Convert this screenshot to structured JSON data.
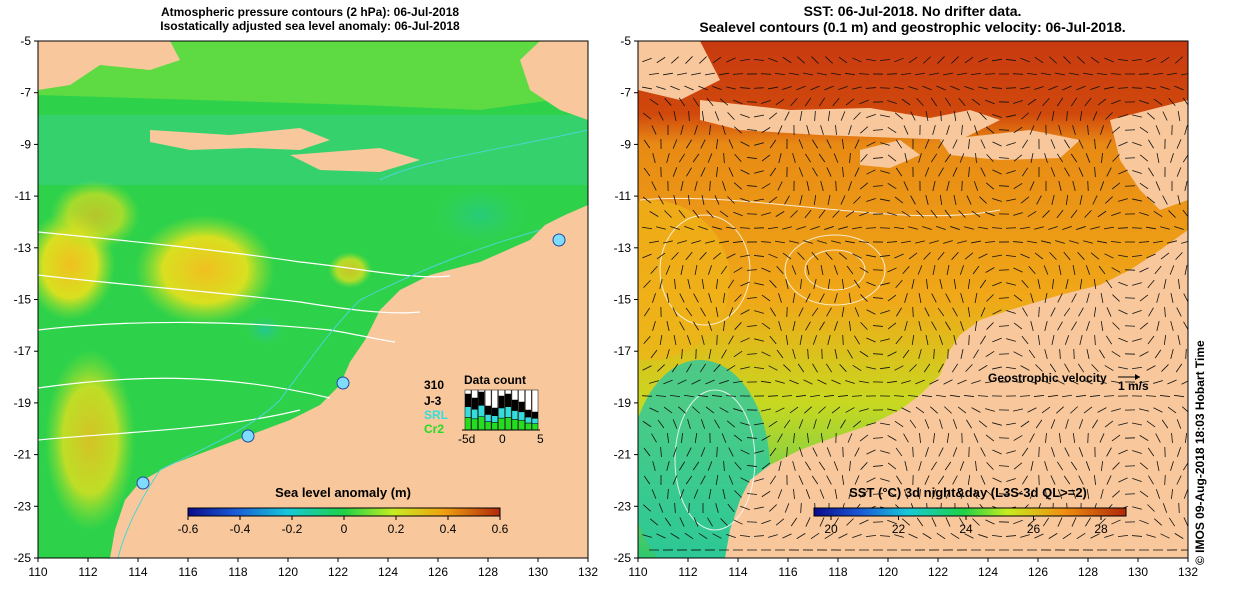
{
  "left_panel": {
    "title_line1": "Atmospheric pressure contours (2 hPa): 06-Jul-2018",
    "title_line2": "Isostatically adjusted sea level anomaly: 06-Jul-2018",
    "x_ticks": [
      "110",
      "112",
      "114",
      "116",
      "118",
      "120",
      "122",
      "124",
      "126",
      "128",
      "130",
      "132"
    ],
    "y_ticks": [
      "-5",
      "-7",
      "-9",
      "-11",
      "-13",
      "-15",
      "-17",
      "-19",
      "-21",
      "-23",
      "-25"
    ],
    "colorbar_title": "Sea level anomaly (m)",
    "colorbar_ticks": [
      "-0.6",
      "-0.4",
      "-0.2",
      "0",
      "0.2",
      "0.4",
      "0.6"
    ],
    "data_count": {
      "title": "Data count",
      "value": "310",
      "legend": [
        {
          "label": "J-3",
          "color": "#000000"
        },
        {
          "label": "SRL",
          "color": "#33dddd"
        },
        {
          "label": "Cr2",
          "color": "#22dd22"
        }
      ],
      "x_ticks": [
        "-5d",
        "0",
        "5"
      ]
    }
  },
  "right_panel": {
    "title_line1": "SST: 06-Jul-2018. No drifter data.",
    "title_line2": "Sealevel contours (0.1 m) and geostrophic velocity: 06-Jul-2018.",
    "x_ticks": [
      "110",
      "112",
      "114",
      "116",
      "118",
      "120",
      "122",
      "124",
      "126",
      "128",
      "130",
      "132"
    ],
    "y_ticks": [
      "-5",
      "-7",
      "-9",
      "-11",
      "-13",
      "-15",
      "-17",
      "-19",
      "-21",
      "-23",
      "-25"
    ],
    "colorbar_title": "SST (°C) 3d night&day (L3S-3d QL>=2)",
    "colorbar_ticks": [
      "20",
      "22",
      "24",
      "26",
      "28"
    ],
    "velocity_label": "Geostrophic velocity",
    "velocity_scale": "1 m/s"
  },
  "side_label": "© IMOS 09-Aug-2018 18:03 Hobart Time",
  "colors": {
    "land": "#f8c89c",
    "coast_contour": "#4fd3d3",
    "contour": "#ffffff"
  }
}
